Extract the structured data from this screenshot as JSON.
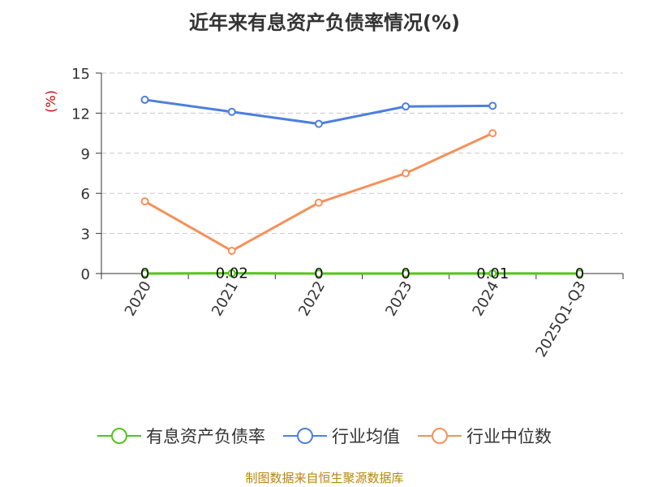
{
  "chart_data": {
    "type": "line",
    "title": "近年来有息资产负债率情况(%)",
    "ylabel": "(%)",
    "xlabel": "",
    "categories": [
      "2020",
      "2021",
      "2022",
      "2023",
      "2024",
      "2025Q1-Q3"
    ],
    "y_ticks": [
      0,
      3,
      6,
      9,
      12,
      15
    ],
    "ylim": [
      0,
      15
    ],
    "grid": true,
    "legend_position": "bottom",
    "series": [
      {
        "name": "有息资产负债率",
        "color": "#52c41a",
        "values": [
          0,
          0.02,
          0,
          0,
          0.01,
          0
        ],
        "data_labels": [
          "0",
          "0.02",
          "0",
          "0",
          "0.01",
          "0"
        ]
      },
      {
        "name": "行业均值",
        "color": "#4e7fdc",
        "values": [
          13.0,
          12.1,
          11.2,
          12.5,
          12.55,
          null
        ]
      },
      {
        "name": "行业中位数",
        "color": "#f5905a",
        "values": [
          5.4,
          1.7,
          5.3,
          7.5,
          10.5,
          null
        ]
      }
    ]
  },
  "footer": {
    "source": "制图数据来自恒生聚源数据库"
  }
}
